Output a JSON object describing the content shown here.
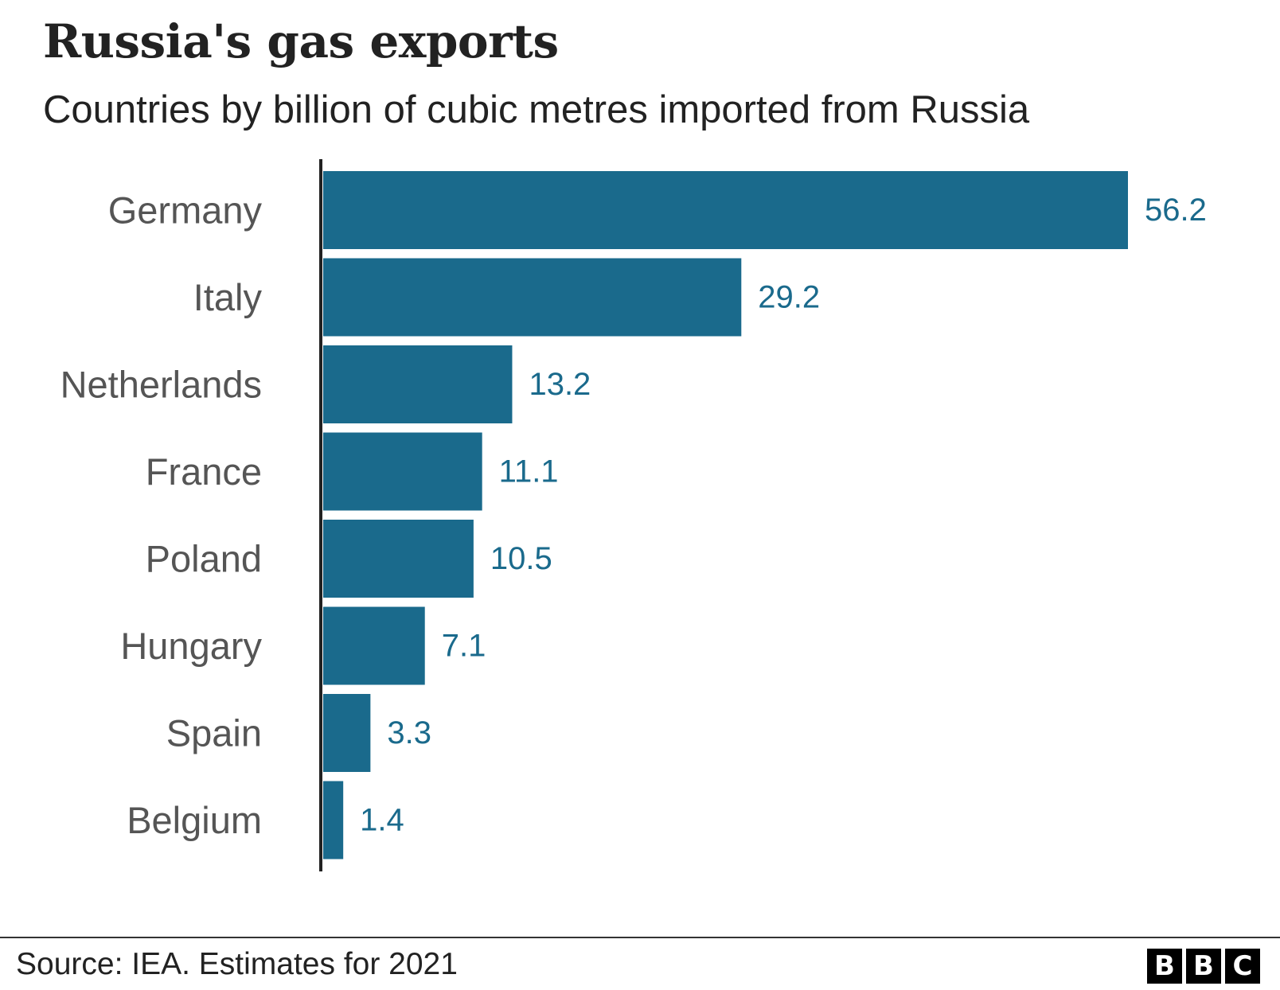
{
  "title": "Russia's gas exports",
  "subtitle": "Countries by billion of cubic metres imported from Russia",
  "source": "Source: IEA. Estimates for 2021",
  "logo": {
    "letters": [
      "B",
      "B",
      "C"
    ]
  },
  "colors": {
    "bar": "#1a6a8c",
    "value_label": "#1a6a8c",
    "category_label": "#555555",
    "axis": "#222222"
  },
  "chart_data": {
    "type": "bar",
    "orientation": "horizontal",
    "categories": [
      "Germany",
      "Italy",
      "Netherlands",
      "France",
      "Poland",
      "Hungary",
      "Spain",
      "Belgium"
    ],
    "values": [
      56.2,
      29.2,
      13.2,
      11.1,
      10.5,
      7.1,
      3.3,
      1.4
    ],
    "value_labels": [
      "56.2",
      "29.2",
      "13.2",
      "11.1",
      "10.5",
      "7.1",
      "3.3",
      "1.4"
    ],
    "title": "Russia's gas exports",
    "subtitle": "Countries by billion of cubic metres imported from Russia",
    "xlim": [
      0,
      56.2
    ],
    "grid": false,
    "legend": "none"
  }
}
